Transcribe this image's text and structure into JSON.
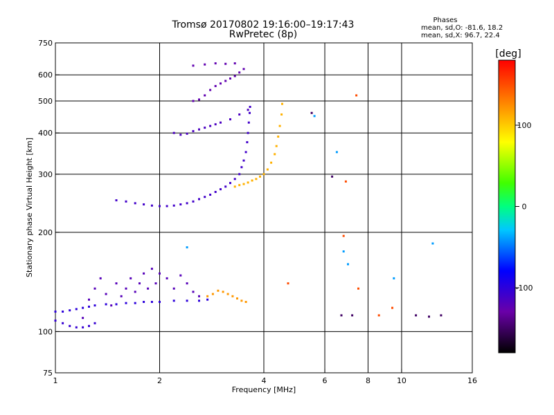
{
  "header": {
    "title_line1": "Tromsø 20170802 19:16:00–19:17:43",
    "title_line2": "RwPretec (8p)",
    "phases_title": "Phases",
    "phases_o": "mean, sd,O: -81.6, 18.2",
    "phases_x": "mean, sd,X:  96.7, 22.4"
  },
  "chart_data": {
    "type": "scatter",
    "xlabel": "Frequency [MHz]",
    "ylabel": "Stationary phase Virtual Height [km]",
    "x_scale": "log",
    "y_scale": "log",
    "xlim": [
      1,
      16
    ],
    "ylim": [
      75,
      750
    ],
    "x_ticks": [
      {
        "value": 1,
        "label": "1"
      },
      {
        "value": 2,
        "label": "2"
      },
      {
        "value": 4,
        "label": "4"
      },
      {
        "value": 6,
        "label": "6"
      },
      {
        "value": 8,
        "label": "8"
      },
      {
        "value": 10,
        "label": "10"
      },
      {
        "value": 16,
        "label": "16"
      }
    ],
    "x_grid": [
      2,
      4,
      6,
      8,
      10
    ],
    "y_ticks": [
      {
        "value": 75,
        "label": "75"
      },
      {
        "value": 100,
        "label": "100"
      },
      {
        "value": 200,
        "label": "200"
      },
      {
        "value": 300,
        "label": "300"
      },
      {
        "value": 400,
        "label": "400"
      },
      {
        "value": 500,
        "label": "500"
      },
      {
        "value": 600,
        "label": "600"
      },
      {
        "value": 750,
        "label": "750"
      }
    ],
    "y_grid": [
      100,
      200,
      300,
      400,
      500,
      600
    ],
    "grid": true,
    "colorbar": {
      "label": "[deg]",
      "range": [
        -180,
        180
      ],
      "ticks": [
        {
          "value": 100,
          "label": "100"
        },
        {
          "value": 0,
          "label": "0"
        },
        {
          "value": -100,
          "label": "-100"
        }
      ]
    },
    "series": [
      {
        "phase": -100,
        "points": [
          [
            1.0,
            115
          ],
          [
            1.05,
            115
          ],
          [
            1.1,
            116
          ],
          [
            1.15,
            117
          ],
          [
            1.2,
            118
          ],
          [
            1.25,
            119
          ],
          [
            1.3,
            120
          ],
          [
            1.4,
            121
          ],
          [
            1.5,
            121
          ],
          [
            1.6,
            122
          ],
          [
            1.7,
            122
          ],
          [
            1.8,
            123
          ],
          [
            1.9,
            123
          ],
          [
            2.0,
            123
          ],
          [
            2.2,
            124
          ],
          [
            2.4,
            124
          ],
          [
            2.6,
            124
          ],
          [
            2.75,
            125
          ]
        ]
      },
      {
        "phase": -105,
        "points": [
          [
            1.0,
            108
          ],
          [
            1.05,
            106
          ],
          [
            1.1,
            104
          ],
          [
            1.15,
            103
          ],
          [
            1.2,
            103
          ],
          [
            1.25,
            104
          ],
          [
            1.3,
            106
          ]
        ]
      },
      {
        "phase": -120,
        "points": [
          [
            1.2,
            110
          ],
          [
            1.25,
            125
          ],
          [
            1.3,
            135
          ],
          [
            1.35,
            145
          ],
          [
            1.4,
            130
          ],
          [
            1.45,
            120
          ],
          [
            1.5,
            140
          ],
          [
            1.55,
            128
          ],
          [
            1.6,
            135
          ],
          [
            1.65,
            145
          ],
          [
            1.7,
            132
          ],
          [
            1.75,
            140
          ],
          [
            1.8,
            150
          ],
          [
            1.85,
            135
          ],
          [
            1.9,
            155
          ],
          [
            1.95,
            140
          ],
          [
            2.0,
            150
          ],
          [
            2.1,
            145
          ],
          [
            2.2,
            135
          ],
          [
            2.3,
            148
          ],
          [
            2.4,
            140
          ],
          [
            2.5,
            132
          ],
          [
            2.6,
            128
          ]
        ]
      },
      {
        "phase": 120,
        "points": [
          [
            2.75,
            128
          ],
          [
            2.85,
            130
          ],
          [
            2.95,
            133
          ],
          [
            3.05,
            132
          ],
          [
            3.15,
            130
          ],
          [
            3.25,
            128
          ],
          [
            3.35,
            126
          ],
          [
            3.45,
            124
          ],
          [
            3.55,
            123
          ]
        ]
      },
      {
        "phase": -110,
        "points": [
          [
            1.5,
            250
          ],
          [
            1.6,
            248
          ],
          [
            1.7,
            245
          ],
          [
            1.8,
            243
          ],
          [
            1.9,
            241
          ],
          [
            2.0,
            240
          ],
          [
            2.1,
            240
          ],
          [
            2.2,
            241
          ],
          [
            2.3,
            243
          ],
          [
            2.4,
            245
          ],
          [
            2.5,
            248
          ],
          [
            2.6,
            252
          ],
          [
            2.7,
            256
          ],
          [
            2.8,
            260
          ],
          [
            2.9,
            265
          ],
          [
            3.0,
            270
          ],
          [
            3.1,
            275
          ],
          [
            3.2,
            282
          ],
          [
            3.3,
            290
          ],
          [
            3.4,
            300
          ],
          [
            3.45,
            315
          ],
          [
            3.5,
            330
          ],
          [
            3.55,
            350
          ],
          [
            3.58,
            375
          ],
          [
            3.6,
            400
          ],
          [
            3.62,
            430
          ],
          [
            3.64,
            460
          ],
          [
            3.65,
            480
          ]
        ]
      },
      {
        "phase": 110,
        "points": [
          [
            3.3,
            275
          ],
          [
            3.4,
            278
          ],
          [
            3.5,
            280
          ],
          [
            3.6,
            283
          ],
          [
            3.7,
            287
          ],
          [
            3.8,
            290
          ],
          [
            3.9,
            295
          ],
          [
            4.0,
            300
          ],
          [
            4.1,
            310
          ],
          [
            4.2,
            325
          ],
          [
            4.3,
            345
          ],
          [
            4.35,
            365
          ],
          [
            4.4,
            390
          ],
          [
            4.45,
            420
          ],
          [
            4.5,
            455
          ],
          [
            4.52,
            490
          ]
        ]
      },
      {
        "phase": -115,
        "points": [
          [
            2.2,
            400
          ],
          [
            2.3,
            395
          ],
          [
            2.4,
            398
          ],
          [
            2.5,
            405
          ],
          [
            2.6,
            410
          ],
          [
            2.7,
            415
          ],
          [
            2.8,
            420
          ],
          [
            2.9,
            425
          ],
          [
            3.0,
            430
          ],
          [
            3.2,
            440
          ],
          [
            3.4,
            455
          ],
          [
            3.6,
            470
          ]
        ]
      },
      {
        "phase": -125,
        "points": [
          [
            2.5,
            500
          ],
          [
            2.6,
            505
          ],
          [
            2.7,
            520
          ],
          [
            2.8,
            540
          ],
          [
            2.9,
            555
          ],
          [
            3.0,
            565
          ],
          [
            3.1,
            575
          ],
          [
            3.2,
            585
          ],
          [
            3.3,
            595
          ],
          [
            3.4,
            610
          ],
          [
            3.5,
            625
          ],
          [
            2.5,
            640
          ],
          [
            2.7,
            645
          ],
          [
            2.9,
            650
          ],
          [
            3.1,
            648
          ],
          [
            3.3,
            650
          ]
        ]
      },
      {
        "phase": -40,
        "points": [
          [
            5.6,
            450
          ],
          [
            6.5,
            350
          ],
          [
            6.8,
            175
          ],
          [
            7.0,
            160
          ],
          [
            9.5,
            145
          ],
          [
            12.3,
            185
          ],
          [
            2.4,
            180
          ]
        ]
      },
      {
        "phase": -150,
        "points": [
          [
            5.5,
            460
          ],
          [
            6.3,
            295
          ],
          [
            6.7,
            112
          ],
          [
            7.2,
            112
          ],
          [
            11.0,
            112
          ],
          [
            12.0,
            111
          ],
          [
            13.0,
            112
          ]
        ]
      },
      {
        "phase": 150,
        "points": [
          [
            6.9,
            285
          ],
          [
            6.8,
            195
          ],
          [
            7.4,
            520
          ],
          [
            4.7,
            140
          ],
          [
            7.5,
            135
          ],
          [
            8.6,
            112
          ],
          [
            9.4,
            118
          ]
        ]
      }
    ]
  }
}
